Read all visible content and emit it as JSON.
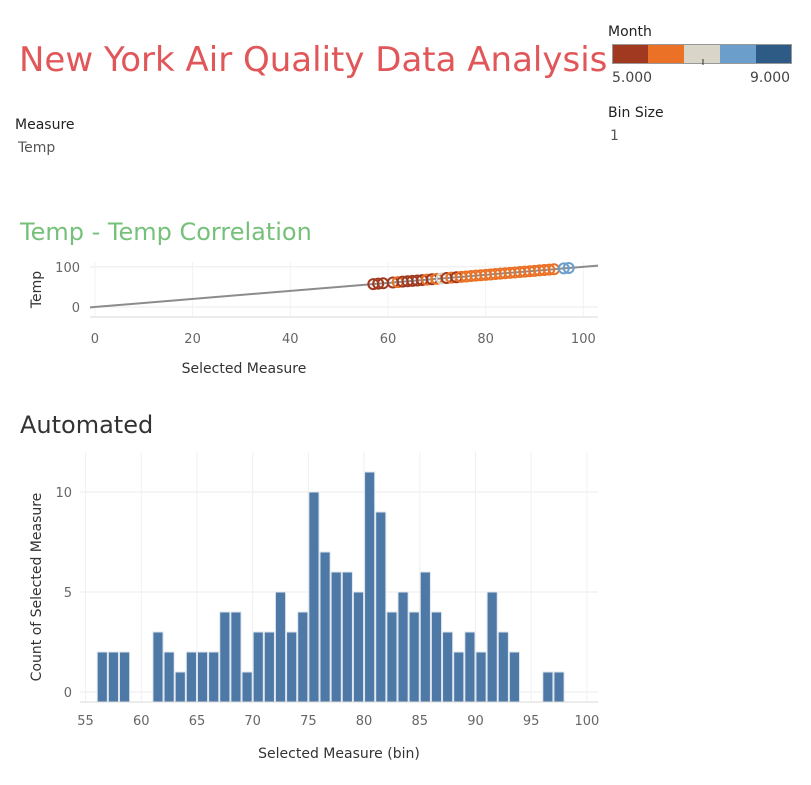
{
  "title": "New York Air Quality Data Analysis",
  "parameters": {
    "measure": {
      "label": "Measure",
      "value": "Temp"
    },
    "bin_size": {
      "label": "Bin Size",
      "value": "1"
    }
  },
  "month_legend": {
    "label": "Month",
    "min_label": "5.000",
    "max_label": "9.000",
    "colors": [
      "#a0391f",
      "#ea7125",
      "#d9d5c9",
      "#6b9ecb",
      "#2e5a86"
    ]
  },
  "chart_data": [
    {
      "type": "scatter",
      "title": "Temp - Temp Correlation",
      "xlabel": "Selected Measure",
      "ylabel": "Temp",
      "xlim": [
        -1,
        103
      ],
      "ylim": [
        -25,
        112
      ],
      "xticks": [
        0,
        20,
        40,
        60,
        80,
        100
      ],
      "yticks": [
        0,
        100
      ],
      "trend_line": {
        "from": [
          -1,
          -1
        ],
        "to": [
          103,
          103
        ]
      },
      "points": [
        {
          "x": 57,
          "month": 5
        },
        {
          "x": 58,
          "month": 5
        },
        {
          "x": 59,
          "month": 5
        },
        {
          "x": 61,
          "month": 5
        },
        {
          "x": 62,
          "month": 6
        },
        {
          "x": 63,
          "month": 5
        },
        {
          "x": 64,
          "month": 5
        },
        {
          "x": 65,
          "month": 5
        },
        {
          "x": 66,
          "month": 5
        },
        {
          "x": 67,
          "month": 5
        },
        {
          "x": 68,
          "month": 6
        },
        {
          "x": 69,
          "month": 5
        },
        {
          "x": 70,
          "month": 6
        },
        {
          "x": 71,
          "month": 7
        },
        {
          "x": 72,
          "month": 5
        },
        {
          "x": 73,
          "month": 6
        },
        {
          "x": 74,
          "month": 5
        },
        {
          "x": 75,
          "month": 6
        },
        {
          "x": 76,
          "month": 6
        },
        {
          "x": 77,
          "month": 6
        },
        {
          "x": 78,
          "month": 6
        },
        {
          "x": 79,
          "month": 6
        },
        {
          "x": 80,
          "month": 6
        },
        {
          "x": 81,
          "month": 6
        },
        {
          "x": 82,
          "month": 6
        },
        {
          "x": 83,
          "month": 6
        },
        {
          "x": 84,
          "month": 6
        },
        {
          "x": 85,
          "month": 6
        },
        {
          "x": 86,
          "month": 6
        },
        {
          "x": 87,
          "month": 6
        },
        {
          "x": 88,
          "month": 6
        },
        {
          "x": 89,
          "month": 6
        },
        {
          "x": 90,
          "month": 6
        },
        {
          "x": 91,
          "month": 6
        },
        {
          "x": 92,
          "month": 6
        },
        {
          "x": 93,
          "month": 6
        },
        {
          "x": 94,
          "month": 6
        },
        {
          "x": 96,
          "month": 8
        },
        {
          "x": 97,
          "month": 8
        }
      ]
    },
    {
      "type": "bar",
      "title": "Automated",
      "xlabel": "Selected Measure (bin)",
      "ylabel": "Count of Selected Measure",
      "xlim": [
        54.5,
        101
      ],
      "ylim": [
        -0.5,
        12
      ],
      "xticks": [
        55,
        60,
        65,
        70,
        75,
        80,
        85,
        90,
        95,
        100
      ],
      "yticks": [
        0,
        5,
        10
      ],
      "bin_size": 1,
      "bar_color": "#4e79a7",
      "bins": [
        56,
        57,
        58,
        59,
        60,
        61,
        62,
        63,
        64,
        65,
        66,
        67,
        68,
        69,
        70,
        71,
        72,
        73,
        74,
        75,
        76,
        77,
        78,
        79,
        80,
        81,
        82,
        83,
        84,
        85,
        86,
        87,
        88,
        89,
        90,
        91,
        92,
        93,
        94,
        95,
        96,
        97,
        98
      ],
      "values": [
        2,
        2,
        2,
        0,
        0,
        3,
        2,
        1,
        2,
        2,
        2,
        4,
        4,
        1,
        3,
        3,
        5,
        3,
        4,
        10,
        7,
        6,
        6,
        5,
        11,
        9,
        4,
        5,
        4,
        6,
        4,
        3,
        2,
        3,
        2,
        5,
        3,
        2,
        0,
        0,
        1,
        1,
        0
      ]
    }
  ]
}
